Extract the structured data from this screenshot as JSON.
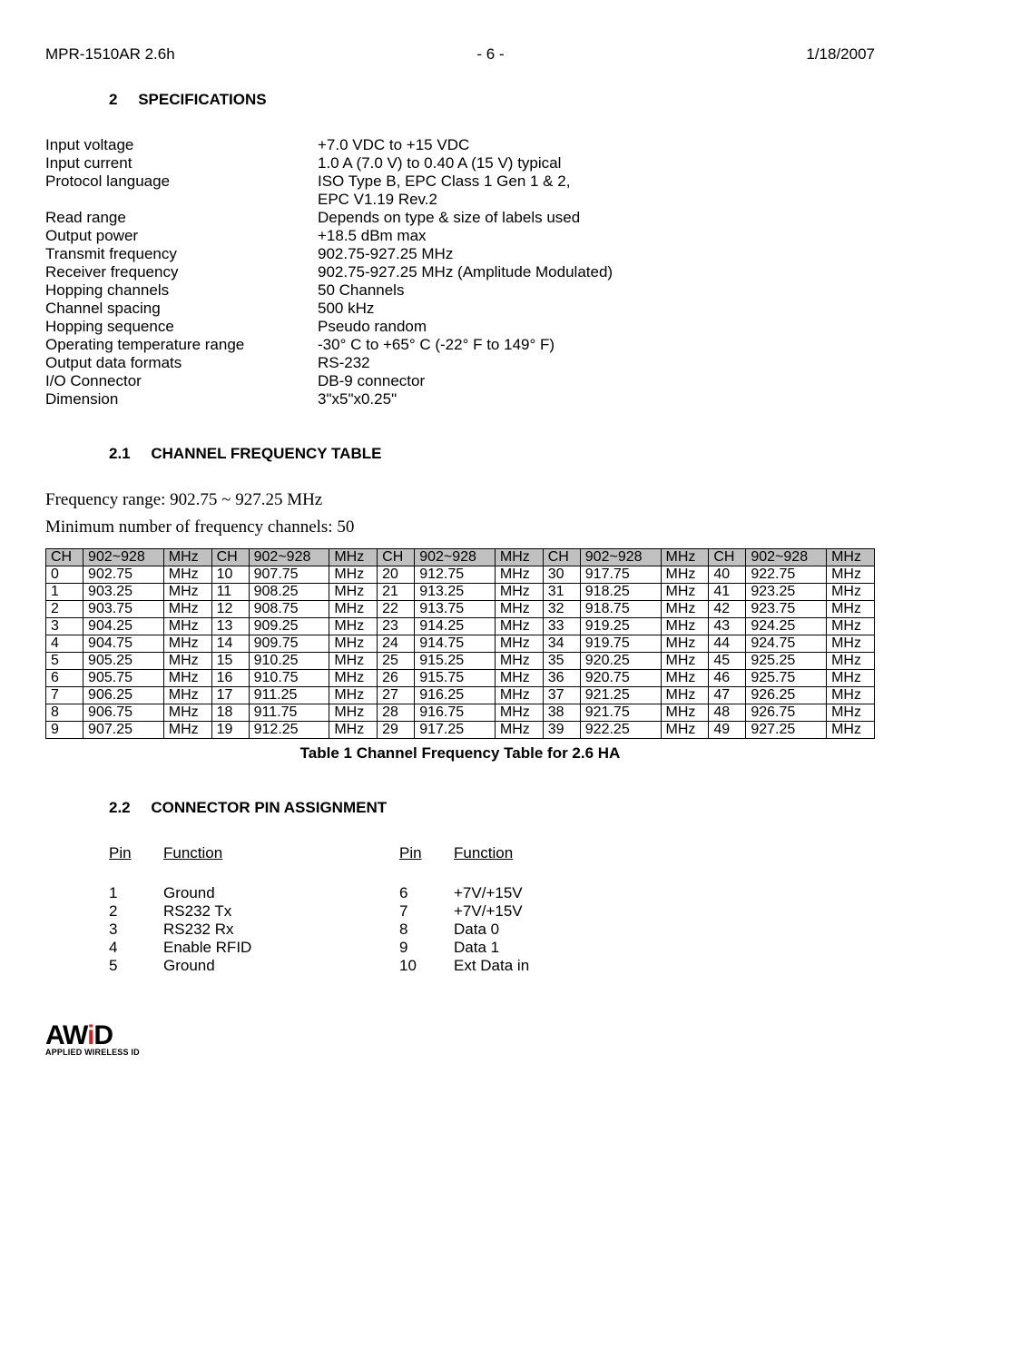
{
  "header": {
    "left": "MPR-1510AR 2.6h",
    "center": "- 6 -",
    "right": "1/18/2007"
  },
  "section2": {
    "num": "2",
    "title": "SPECIFICATIONS",
    "rows": [
      {
        "label": "Input voltage",
        "value": "+7.0 VDC to +15 VDC"
      },
      {
        "label": "Input current",
        "value": "1.0 A (7.0 V) to 0.40 A (15 V) typical"
      },
      {
        "label": "Protocol language",
        "value": "ISO Type B, EPC Class 1 Gen 1 & 2,"
      },
      {
        "label": "",
        "value": "EPC V1.19 Rev.2"
      },
      {
        "label": "Read range",
        "value": "Depends on type & size of labels used"
      },
      {
        "label": "Output power",
        "value": "+18.5 dBm max"
      },
      {
        "label": "Transmit frequency",
        "value": "902.75-927.25 MHz"
      },
      {
        "label": "Receiver frequency",
        "value": "902.75-927.25 MHz (Amplitude Modulated)"
      },
      {
        "label": "Hopping channels",
        "value": "50 Channels"
      },
      {
        "label": "Channel spacing",
        "value": "500 kHz"
      },
      {
        "label": "Hopping sequence",
        "value": "Pseudo random"
      },
      {
        "label": "Operating temperature range",
        "value": "-30° C to +65° C (-22° F to 149° F)"
      },
      {
        "label": "Output data formats",
        "value": "RS-232"
      },
      {
        "label": "I/O Connector",
        "value": "DB-9 connector"
      },
      {
        "label": "Dimension",
        "value": "3\"x5\"x0.25\""
      }
    ]
  },
  "section21": {
    "num": "2.1",
    "title": "CHANNEL FREQUENCY TABLE",
    "freq_range": "Frequency range: 902.75 ~ 927.25 MHz",
    "min_channels": "Minimum number of frequency channels: 50",
    "header_cells": [
      "CH",
      "902~928",
      "MHz",
      "CH",
      "902~928",
      "MHz",
      "CH",
      "902~928",
      "MHz",
      "CH",
      "902~928",
      "MHz",
      "CH",
      "902~928",
      "MHz"
    ],
    "rows": [
      [
        "0",
        "902.75",
        "MHz",
        "10",
        "907.75",
        "MHz",
        "20",
        "912.75",
        "MHz",
        "30",
        "917.75",
        "MHz",
        "40",
        "922.75",
        "MHz"
      ],
      [
        "1",
        "903.25",
        "MHz",
        "11",
        "908.25",
        "MHz",
        "21",
        "913.25",
        "MHz",
        "31",
        "918.25",
        "MHz",
        "41",
        "923.25",
        "MHz"
      ],
      [
        "2",
        "903.75",
        "MHz",
        "12",
        "908.75",
        "MHz",
        "22",
        "913.75",
        "MHz",
        "32",
        "918.75",
        "MHz",
        "42",
        "923.75",
        "MHz"
      ],
      [
        "3",
        "904.25",
        "MHz",
        "13",
        "909.25",
        "MHz",
        "23",
        "914.25",
        "MHz",
        "33",
        "919.25",
        "MHz",
        "43",
        "924.25",
        "MHz"
      ],
      [
        "4",
        "904.75",
        "MHz",
        "14",
        "909.75",
        "MHz",
        "24",
        "914.75",
        "MHz",
        "34",
        "919.75",
        "MHz",
        "44",
        "924.75",
        "MHz"
      ],
      [
        "5",
        "905.25",
        "MHz",
        "15",
        "910.25",
        "MHz",
        "25",
        "915.25",
        "MHz",
        "35",
        "920.25",
        "MHz",
        "45",
        "925.25",
        "MHz"
      ],
      [
        "6",
        "905.75",
        "MHz",
        "16",
        "910.75",
        "MHz",
        "26",
        "915.75",
        "MHz",
        "36",
        "920.75",
        "MHz",
        "46",
        "925.75",
        "MHz"
      ],
      [
        "7",
        "906.25",
        "MHz",
        "17",
        "911.25",
        "MHz",
        "27",
        "916.25",
        "MHz",
        "37",
        "921.25",
        "MHz",
        "47",
        "926.25",
        "MHz"
      ],
      [
        "8",
        "906.75",
        "MHz",
        "18",
        "911.75",
        "MHz",
        "28",
        "916.75",
        "MHz",
        "38",
        "921.75",
        "MHz",
        "48",
        "926.75",
        "MHz"
      ],
      [
        "9",
        "907.25",
        "MHz",
        "19",
        "912.25",
        "MHz",
        "29",
        "917.25",
        "MHz",
        "39",
        "922.25",
        "MHz",
        "49",
        "927.25",
        "MHz"
      ]
    ],
    "caption": "Table 1   Channel Frequency Table for 2.6 HA"
  },
  "section22": {
    "num": "2.2",
    "title": "CONNECTOR PIN ASSIGNMENT",
    "col_headers": [
      "Pin",
      "Function",
      "Pin",
      "Function"
    ],
    "rows": [
      [
        "1",
        "Ground",
        "6",
        "+7V/+15V"
      ],
      [
        "2",
        "RS232 Tx",
        "7",
        "+7V/+15V"
      ],
      [
        "3",
        "RS232 Rx",
        "8",
        "Data 0"
      ],
      [
        "4",
        "Enable RFID",
        "9",
        "Data 1"
      ],
      [
        "5",
        "Ground",
        "10",
        "Ext Data in"
      ]
    ]
  },
  "logo": {
    "main": "AWiD",
    "sub": "APPLIED WIRELESS ID"
  }
}
